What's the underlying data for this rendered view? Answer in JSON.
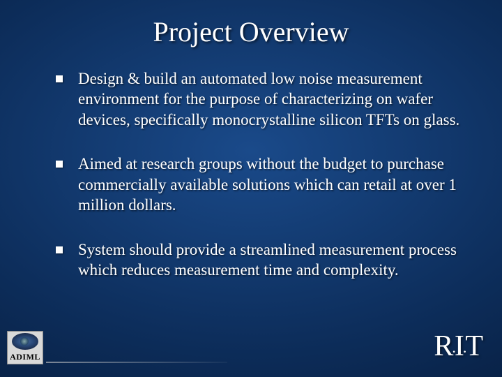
{
  "slide": {
    "title": "Project Overview",
    "bullets": [
      "Design & build an automated  low noise measurement environment for the purpose of characterizing on wafer devices, specifically monocrystalline silicon TFTs on glass.",
      "Aimed at research groups without the budget to purchase commercially available solutions which can retail at over 1 million dollars.",
      "System should provide a streamlined measurement process which reduces measurement time and complexity."
    ],
    "badge_label": "ADIML",
    "logo_parts": {
      "r": "R",
      "i": "I",
      "t": "T",
      "dot": "."
    }
  },
  "style": {
    "background_gradient": {
      "inner": "#1a4a8a",
      "mid": "#0d2e5c",
      "outer": "#041530"
    },
    "title_fontsize": 40,
    "body_fontsize": 23,
    "text_color": "#ffffff",
    "bullet_marker_color": "#ffffff",
    "bullet_marker_size": 10,
    "font_family": "Times New Roman",
    "rit_fontsize": 42,
    "badge_bg": "#d9d9d9",
    "slide_width": 720,
    "slide_height": 540
  }
}
